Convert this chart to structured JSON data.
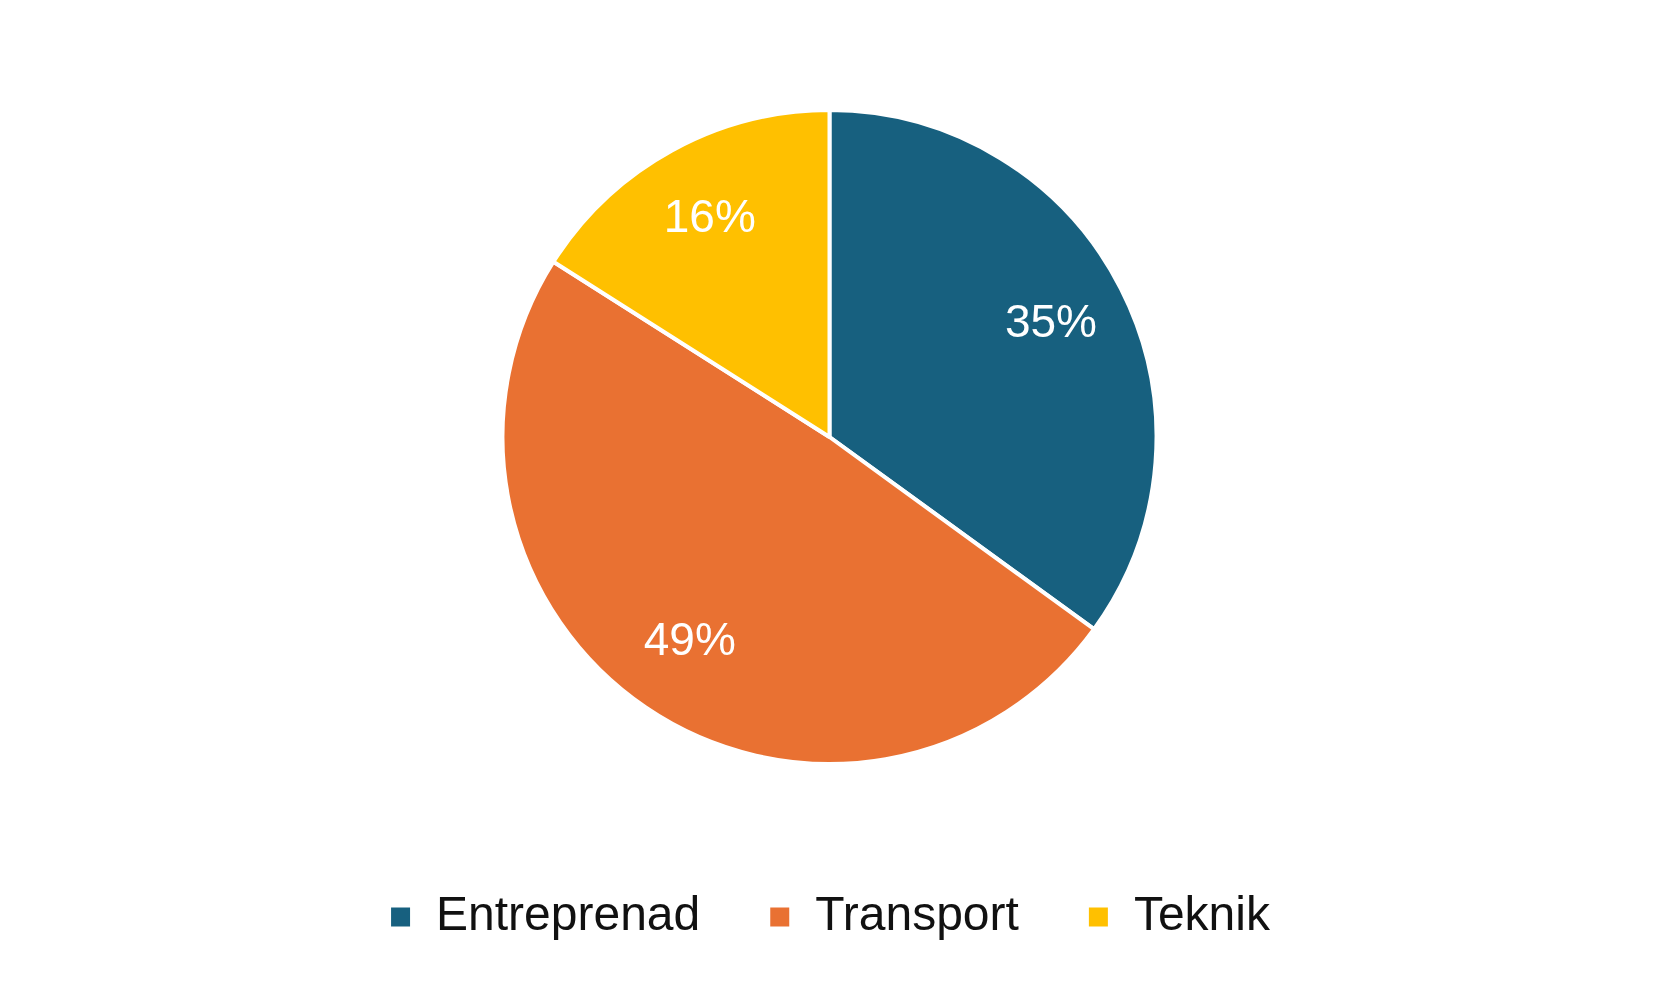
{
  "chart_data": {
    "type": "pie",
    "categories": [
      "Entreprenad",
      "Transport",
      "Teknik"
    ],
    "values": [
      35,
      49,
      16
    ],
    "colors": [
      "#17607f",
      "#e97132",
      "#ffc000"
    ],
    "value_labels": [
      "35%",
      "49%",
      "16%"
    ],
    "legend": "bottom"
  }
}
